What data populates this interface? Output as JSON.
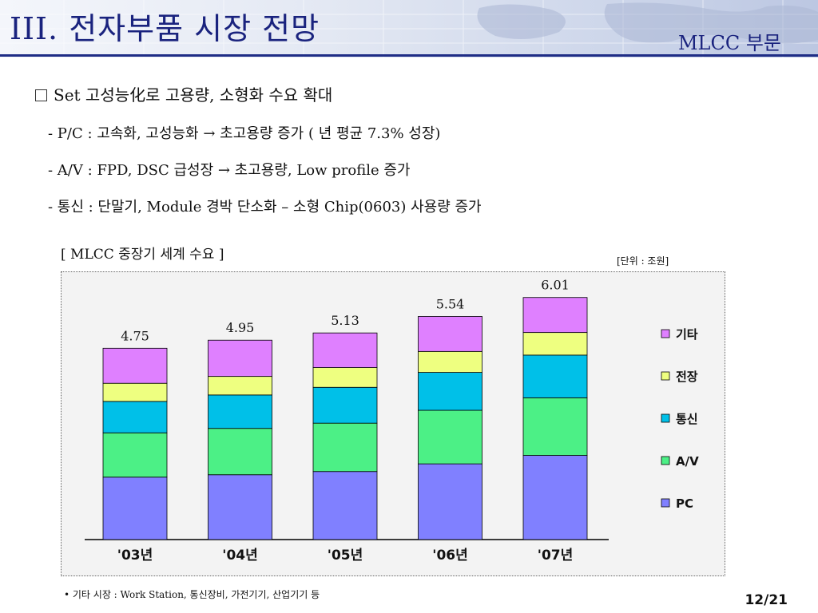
{
  "header": {
    "title": "III.  전자부품 시장 전망",
    "section": "MLCC 부문"
  },
  "content": {
    "heading": "Set 고성능化로 고용량, 소형화 수요 확대",
    "bullets": [
      "- P/C : 고속화, 고성능화 → 초고용량 증가 ( 년 평균 7.3% 성장)",
      "- A/V : FPD, DSC 급성장 → 초고용량, Low profile 증가",
      "- 통신 : 단말기, Module 경박 단소화 – 소형 Chip(0603) 사용량 증가"
    ]
  },
  "chart_title": "[ MLCC 중장기 세계 수요 ]",
  "unit_label": "[단위 : 조원]",
  "chart_data": {
    "type": "bar",
    "stacked": true,
    "categories": [
      "'03년",
      "'04년",
      "'05년",
      "'06년",
      "'07년"
    ],
    "totals": [
      "4.75",
      "4.95",
      "5.13",
      "5.54",
      "6.01"
    ],
    "series": [
      {
        "name": "PC",
        "color": "#8080ff",
        "values": [
          1.55,
          1.61,
          1.69,
          1.88,
          2.09
        ]
      },
      {
        "name": "A/V",
        "color": "#4cf086",
        "values": [
          1.1,
          1.15,
          1.2,
          1.33,
          1.43
        ]
      },
      {
        "name": "통신",
        "color": "#00c0e8",
        "values": [
          0.78,
          0.83,
          0.89,
          0.94,
          1.06
        ]
      },
      {
        "name": "전장",
        "color": "#eeff80",
        "values": [
          0.45,
          0.46,
          0.49,
          0.52,
          0.56
        ]
      },
      {
        "name": "기타",
        "color": "#df80ff",
        "values": [
          0.87,
          0.9,
          0.86,
          0.87,
          0.87
        ]
      }
    ],
    "ylim": [
      0,
      6.5
    ],
    "grid": false,
    "legend_position": "right",
    "legend_order": [
      "기타",
      "전장",
      "통신",
      "A/V",
      "PC"
    ]
  },
  "footnote": "• 기타 시장 : Work Station, 통신장비, 가전기기, 산업기기 등",
  "page_number": "12/21"
}
